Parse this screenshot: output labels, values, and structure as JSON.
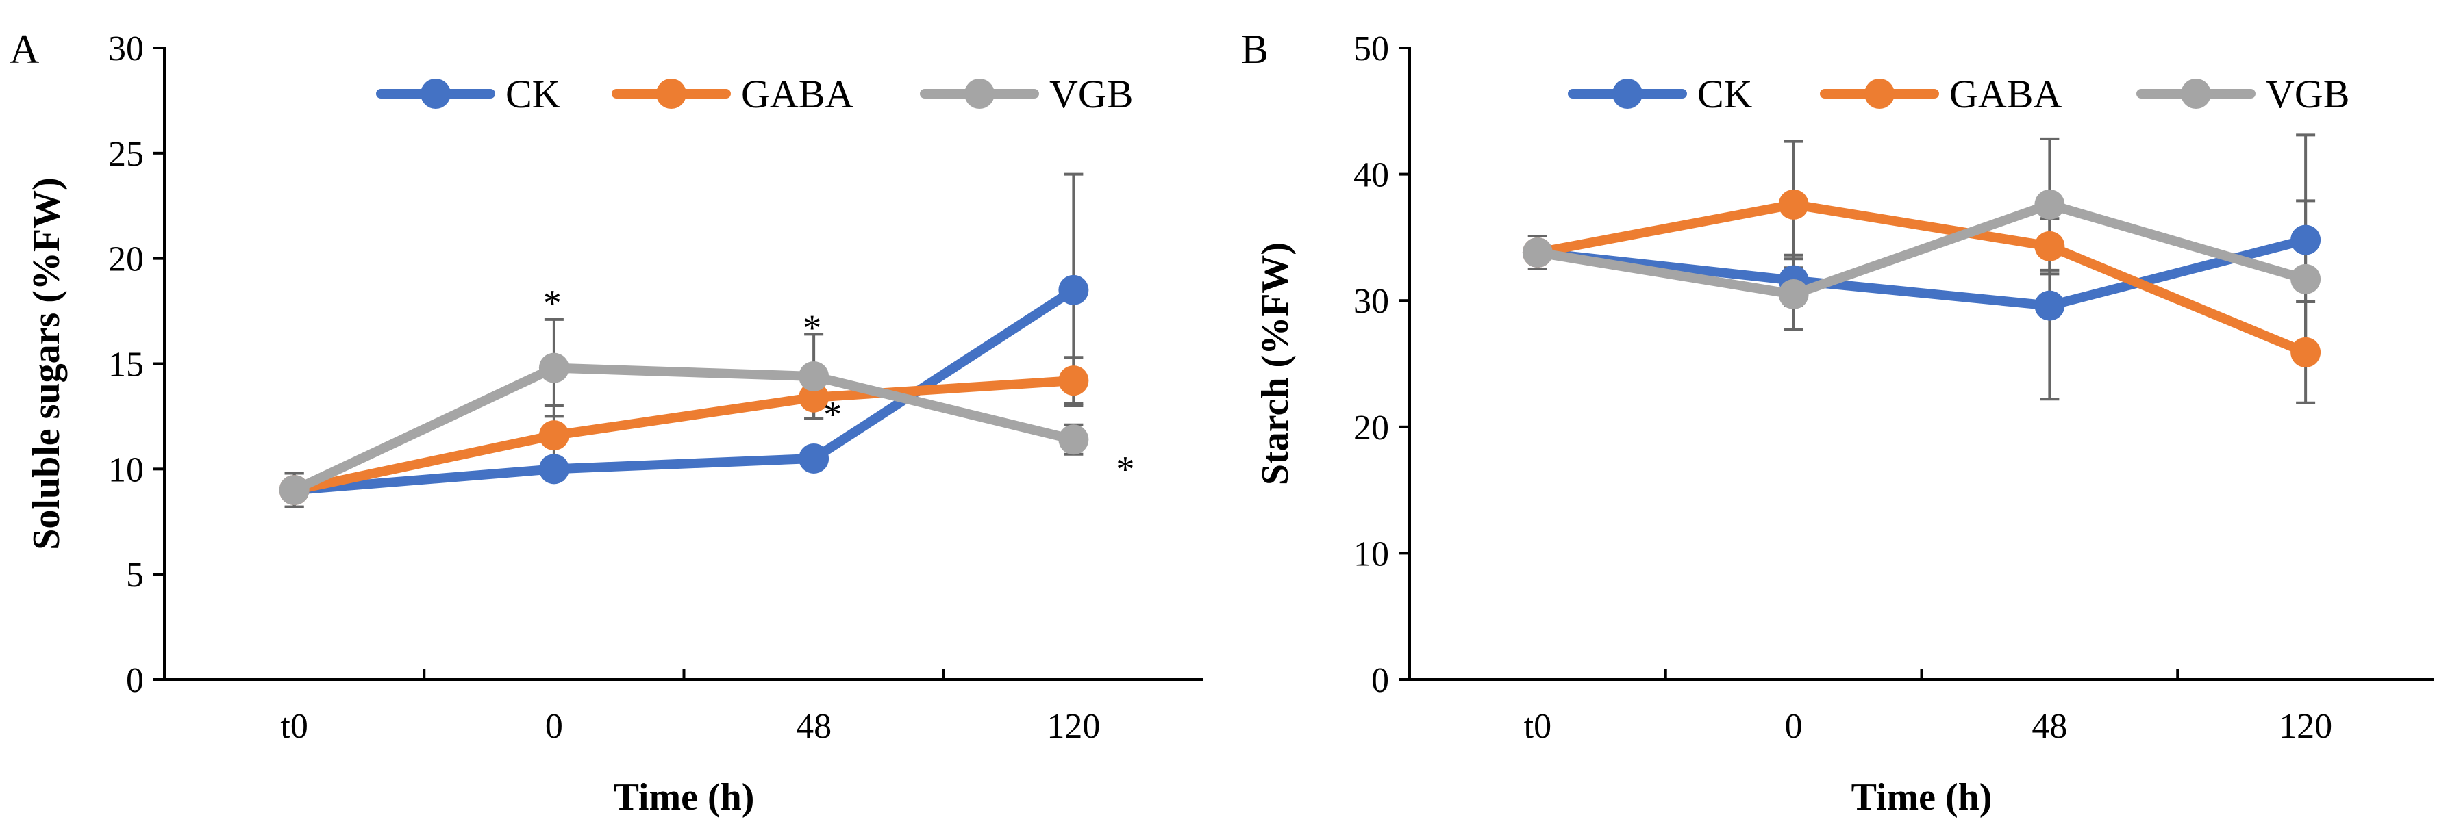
{
  "chart_data": [
    {
      "panel": "A",
      "type": "line",
      "categories": [
        "t0",
        "0",
        "48",
        "120"
      ],
      "xlabel": "Time (h)",
      "ylabel": "Soluble sugars (%FW)",
      "ylim": [
        0,
        30
      ],
      "yticks": [
        "0",
        "5",
        "10",
        "15",
        "20",
        "25",
        "30"
      ],
      "grid": false,
      "legend": "top-right",
      "series": [
        {
          "name": "CK",
          "color": "#4472c4",
          "values": [
            9.0,
            10.0,
            10.5,
            18.5
          ],
          "errors": [
            0.8,
            0.5,
            0.4,
            5.5
          ]
        },
        {
          "name": "GABA",
          "color": "#ed7d31",
          "values": [
            9.0,
            11.6,
            13.4,
            14.2
          ],
          "errors": [
            0.8,
            1.4,
            1.0,
            1.1
          ]
        },
        {
          "name": "VGB",
          "color": "#a5a5a5",
          "values": [
            9.0,
            14.8,
            14.4,
            11.4
          ],
          "errors": [
            0.8,
            2.3,
            2.0,
            0.7
          ]
        }
      ],
      "annotations": [
        {
          "text": "*",
          "x": "0",
          "y": 17.9
        },
        {
          "text": "*",
          "x": "48",
          "y": 16.7
        },
        {
          "text": "*",
          "x": "48",
          "y": 12.6
        },
        {
          "text": "*",
          "x": "120",
          "y": 10.0
        }
      ]
    },
    {
      "panel": "B",
      "type": "line",
      "categories": [
        "t0",
        "0",
        "48",
        "120"
      ],
      "xlabel": "Time (h)",
      "ylabel": "Starch (%FW)",
      "ylim": [
        0,
        50
      ],
      "yticks": [
        "0",
        "10",
        "20",
        "30",
        "40",
        "50"
      ],
      "grid": false,
      "legend": "top-right",
      "series": [
        {
          "name": "CK",
          "color": "#4472c4",
          "values": [
            33.8,
            31.6,
            29.6,
            34.8
          ],
          "errors": [
            1.3,
            2.0,
            7.4,
            8.3
          ]
        },
        {
          "name": "GABA",
          "color": "#ed7d31",
          "values": [
            33.8,
            37.6,
            34.3,
            25.9
          ],
          "errors": [
            1.3,
            5.0,
            2.2,
            4.0
          ]
        },
        {
          "name": "VGB",
          "color": "#a5a5a5",
          "values": [
            33.8,
            30.5,
            37.6,
            31.7
          ],
          "errors": [
            1.3,
            2.8,
            5.2,
            6.2
          ]
        }
      ],
      "annotations": []
    }
  ]
}
